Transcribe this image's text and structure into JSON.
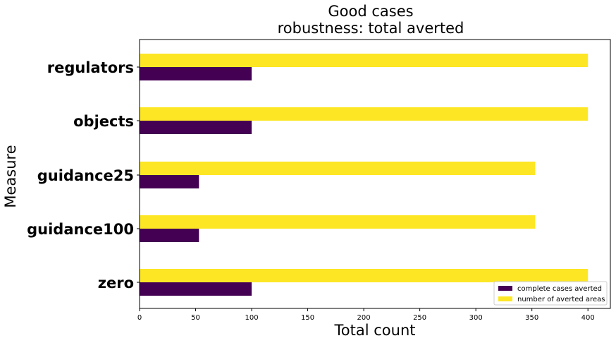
{
  "chart_data": {
    "type": "bar",
    "orientation": "horizontal",
    "title": "Good cases\nrobustness: total averted",
    "title_lines": [
      "Good cases",
      "robustness: total averted"
    ],
    "xlabel": "Total count",
    "ylabel": "Measure",
    "categories": [
      "regulators",
      "objects",
      "guidance25",
      "guidance100",
      "zero"
    ],
    "series": [
      {
        "name": "complete cases averted",
        "values": [
          100,
          100,
          53,
          53,
          100
        ],
        "color": "#440154"
      },
      {
        "name": "number of averted areas",
        "values": [
          400,
          400,
          353,
          353,
          400
        ],
        "color": "#fde725"
      }
    ],
    "xlim": [
      0,
      420
    ],
    "xticks": [
      0,
      50,
      100,
      150,
      200,
      250,
      300,
      350,
      400
    ],
    "grid": false,
    "legend_position": "lower-right"
  }
}
